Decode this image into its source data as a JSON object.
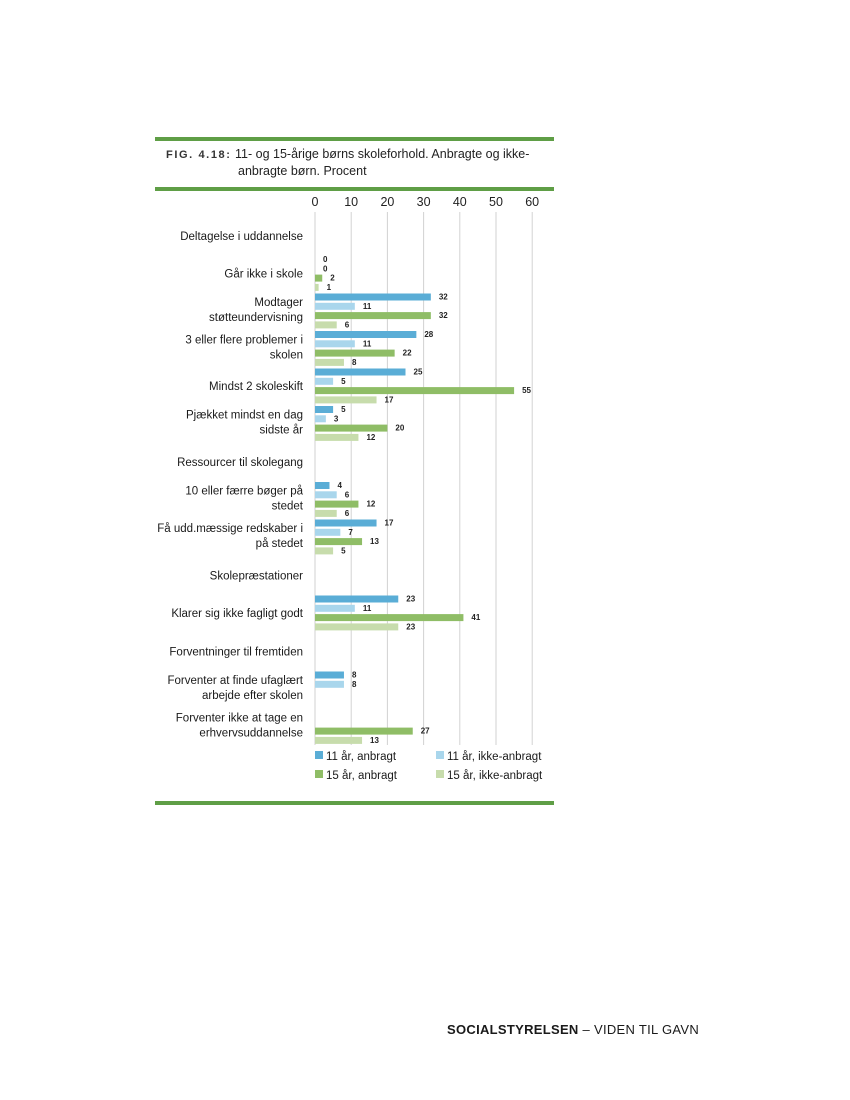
{
  "figure": {
    "label": "FIG. 4.18:",
    "title_line1": "11- og 15-årige børns skoleforhold. Anbragte og ikke-",
    "title_line2": "anbragte børn. Procent"
  },
  "footer": {
    "brand": "SOCIALSTYRELSEN",
    "tagline": " – VIDEN TIL GAVN"
  },
  "colors": {
    "rule": "#5f9e46",
    "grid": "#d2d2d2",
    "s11a": "#5aadd6",
    "s11n": "#a9d6ec",
    "s15a": "#8fbd66",
    "s15n": "#c7dcac"
  },
  "chart_data": {
    "type": "bar",
    "orientation": "horizontal",
    "xlim": [
      0,
      60
    ],
    "xticks": [
      0,
      10,
      20,
      30,
      40,
      50,
      60
    ],
    "grid": true,
    "legend_position": "bottom",
    "series_names": [
      "11 år, anbragt",
      "11 år, ikke-anbragt",
      "15 år, anbragt",
      "15 år, ikke-anbragt"
    ],
    "rows": [
      {
        "kind": "section",
        "label": [
          "Deltagelse i uddannelse"
        ]
      },
      {
        "kind": "item",
        "label": [
          "Går ikke i skole"
        ],
        "values": [
          0,
          0,
          2,
          1
        ]
      },
      {
        "kind": "item",
        "label": [
          "Modtager",
          "støtteundervisning"
        ],
        "values": [
          32,
          11,
          32,
          6
        ]
      },
      {
        "kind": "item",
        "label": [
          "3 eller flere problemer i",
          "skolen"
        ],
        "values": [
          28,
          11,
          22,
          8
        ]
      },
      {
        "kind": "item",
        "label": [
          "Mindst 2  skoleskift"
        ],
        "values": [
          25,
          5,
          55,
          17
        ]
      },
      {
        "kind": "item",
        "label": [
          "Pjækket mindst en dag",
          "sidste år"
        ],
        "values": [
          5,
          3,
          20,
          12
        ]
      },
      {
        "kind": "section",
        "label": [
          "Ressourcer til skolegang"
        ]
      },
      {
        "kind": "item",
        "label": [
          "10 eller færre bøger på",
          "stedet"
        ],
        "values": [
          4,
          6,
          12,
          6
        ]
      },
      {
        "kind": "item",
        "label": [
          "Få udd.mæssige redskaber i",
          "på stedet"
        ],
        "values": [
          17,
          7,
          13,
          5
        ]
      },
      {
        "kind": "section",
        "label": [
          "Skolepræstationer"
        ]
      },
      {
        "kind": "item",
        "label": [
          "Klarer sig ikke fagligt godt"
        ],
        "values": [
          23,
          11,
          41,
          23
        ]
      },
      {
        "kind": "section",
        "label": [
          "Forventninger til fremtiden"
        ]
      },
      {
        "kind": "item",
        "label": [
          "Forventer at finde ufaglært",
          "arbejde efter skolen"
        ],
        "values": [
          8,
          8,
          null,
          null
        ]
      },
      {
        "kind": "item",
        "label": [
          "Forventer ikke at tage en",
          "erhvervsuddannelse"
        ],
        "values": [
          null,
          null,
          27,
          13
        ]
      }
    ]
  }
}
